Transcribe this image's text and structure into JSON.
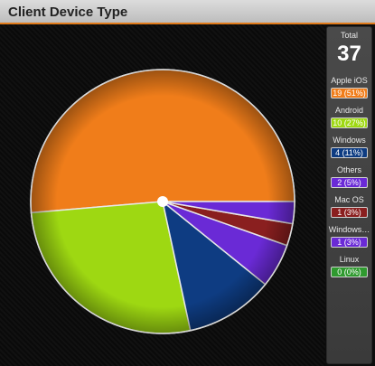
{
  "window": {
    "title": "Client Device Type"
  },
  "total": {
    "label": "Total",
    "value": "37"
  },
  "legend": [
    {
      "label": "Apple iOS",
      "value_text": "19 (51%)",
      "color": "#f07d1a"
    },
    {
      "label": "Android",
      "value_text": "10 (27%)",
      "color": "#9ed812"
    },
    {
      "label": "Windows",
      "value_text": "4 (11%)",
      "color": "#0e3c82"
    },
    {
      "label": "Others",
      "value_text": "2 (5%)",
      "color": "#6a2ad6"
    },
    {
      "label": "Mac OS",
      "value_text": "1 (3%)",
      "color": "#8a1f1f"
    },
    {
      "label": "Windows…",
      "value_text": "1 (3%)",
      "color": "#6a2ad6"
    },
    {
      "label": "Linux",
      "value_text": "0 (0%)",
      "color": "#2f9a2f"
    }
  ],
  "chart_data": {
    "type": "pie",
    "categories": [
      "Apple iOS",
      "Android",
      "Windows",
      "Others",
      "Mac OS",
      "Windows…",
      "Linux"
    ],
    "values": [
      19,
      10,
      4,
      2,
      1,
      1,
      0
    ],
    "colors": [
      "#f07d1a",
      "#9ed812",
      "#0e3c82",
      "#6a2ad6",
      "#8a1f1f",
      "#6a2ad6",
      "#2f9a2f"
    ]
  }
}
